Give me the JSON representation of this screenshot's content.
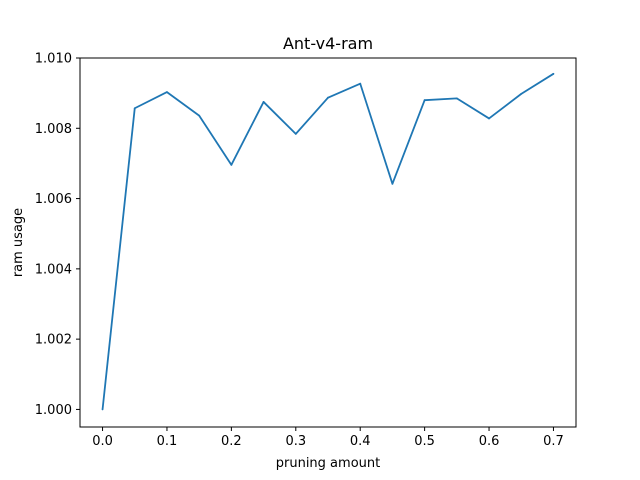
{
  "chart_data": {
    "type": "line",
    "title": "Ant-v4-ram",
    "xlabel": "pruning amount",
    "ylabel": "ram usage",
    "xlim": [
      -0.035,
      0.735
    ],
    "ylim": [
      0.9995,
      1.01
    ],
    "x_ticks": [
      0.0,
      0.1,
      0.2,
      0.3,
      0.4,
      0.5,
      0.6,
      0.7
    ],
    "x_tick_labels": [
      "0.0",
      "0.1",
      "0.2",
      "0.3",
      "0.4",
      "0.5",
      "0.6",
      "0.7"
    ],
    "y_ticks": [
      1.0,
      1.002,
      1.004,
      1.006,
      1.008,
      1.01
    ],
    "y_tick_labels": [
      "1.000",
      "1.002",
      "1.004",
      "1.006",
      "1.008",
      "1.010"
    ],
    "grid": false,
    "series": [
      {
        "color": "#1f77b4",
        "x": [
          0.0,
          0.05,
          0.1,
          0.15,
          0.2,
          0.25,
          0.3,
          0.35,
          0.4,
          0.45,
          0.5,
          0.55,
          0.6,
          0.65,
          0.7
        ],
        "y": [
          1.0,
          1.00857,
          1.00903,
          1.00836,
          1.00696,
          1.00875,
          1.00784,
          1.00887,
          1.00927,
          1.00642,
          1.0088,
          1.00885,
          1.00828,
          1.00898,
          1.00955
        ]
      }
    ]
  }
}
